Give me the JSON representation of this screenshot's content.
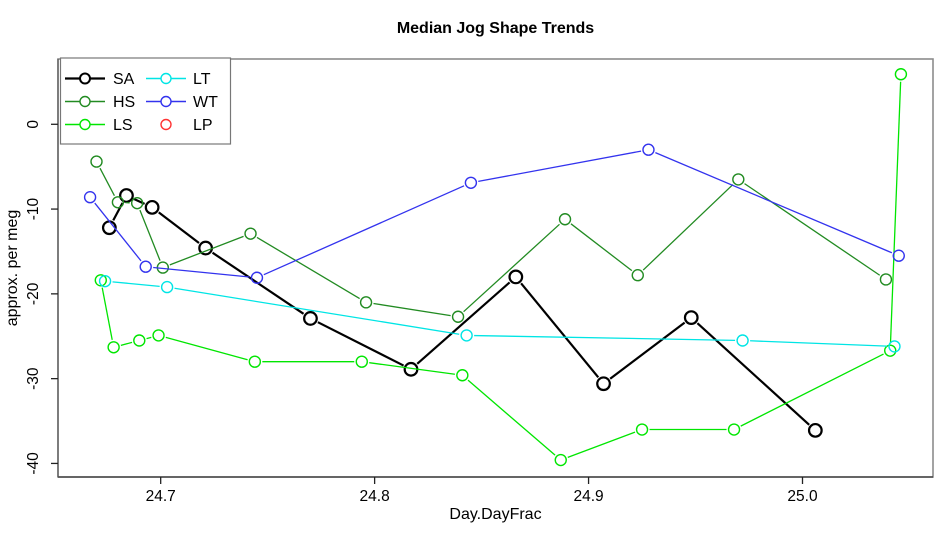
{
  "chart_data": {
    "type": "line",
    "title": "Median Jog Shape Trends",
    "xlabel": "Day.DayFrac",
    "ylabel": "approx. per meg",
    "xlim": [
      24.652,
      25.061
    ],
    "ylim": [
      -41.6,
      7.7
    ],
    "xticks": [
      "24.7",
      "24.8",
      "24.9",
      "25.0"
    ],
    "xtick_values": [
      24.7,
      24.8,
      24.9,
      25.0
    ],
    "yticks": [
      "0",
      "-10",
      "-20",
      "-30",
      "-40"
    ],
    "ytick_values": [
      0,
      -10,
      -20,
      -30,
      -40
    ],
    "grid": false,
    "legend_position": "top-left",
    "legend_columns": [
      [
        "SA",
        "HS",
        "LS"
      ],
      [
        "LT",
        "WT",
        "LP"
      ]
    ],
    "series": [
      {
        "name": "SA",
        "color": "#000000",
        "has_line": true,
        "line_width": 2.2,
        "marker_radius": 6.3,
        "marker_stroke": 2.2,
        "points": [
          [
            24.676,
            -12.2
          ],
          [
            24.684,
            -8.4
          ],
          [
            24.696,
            -9.8
          ],
          [
            24.721,
            -14.6
          ],
          [
            24.77,
            -22.9
          ],
          [
            24.817,
            -28.9
          ],
          [
            24.866,
            -18.0
          ],
          [
            24.907,
            -30.6
          ],
          [
            24.948,
            -22.8
          ],
          [
            25.006,
            -36.1
          ]
        ]
      },
      {
        "name": "HS",
        "color": "#228B22",
        "has_line": true,
        "line_width": 1.3,
        "marker_radius": 5.5,
        "marker_stroke": 1.4,
        "points": [
          [
            24.67,
            -4.4
          ],
          [
            24.68,
            -9.2
          ],
          [
            24.689,
            -9.3
          ],
          [
            24.701,
            -16.9
          ],
          [
            24.742,
            -12.9
          ],
          [
            24.796,
            -21.0
          ],
          [
            24.839,
            -22.7
          ],
          [
            24.889,
            -11.2
          ],
          [
            24.923,
            -17.8
          ],
          [
            24.97,
            -6.5
          ],
          [
            25.039,
            -18.3
          ]
        ]
      },
      {
        "name": "LS",
        "color": "#00E600",
        "has_line": true,
        "line_width": 1.3,
        "marker_radius": 5.5,
        "marker_stroke": 1.4,
        "points": [
          [
            24.672,
            -18.4
          ],
          [
            24.678,
            -26.3
          ],
          [
            24.69,
            -25.5
          ],
          [
            24.699,
            -24.9
          ],
          [
            24.744,
            -28.0
          ],
          [
            24.794,
            -28.0
          ],
          [
            24.841,
            -29.6
          ],
          [
            24.887,
            -39.6
          ],
          [
            24.925,
            -36.0
          ],
          [
            24.968,
            -36.0
          ],
          [
            25.041,
            -26.7
          ],
          [
            25.046,
            5.9
          ]
        ]
      },
      {
        "name": "LT",
        "color": "#00E5E5",
        "has_line": true,
        "line_width": 1.3,
        "marker_radius": 5.5,
        "marker_stroke": 1.4,
        "points": [
          [
            24.674,
            -18.5
          ],
          [
            24.703,
            -19.2
          ],
          [
            24.843,
            -24.9
          ],
          [
            24.972,
            -25.5
          ],
          [
            25.043,
            -26.2
          ]
        ]
      },
      {
        "name": "WT",
        "color": "#3333EE",
        "has_line": true,
        "line_width": 1.3,
        "marker_radius": 5.5,
        "marker_stroke": 1.4,
        "points": [
          [
            24.667,
            -8.6
          ],
          [
            24.693,
            -16.8
          ],
          [
            24.745,
            -18.1
          ],
          [
            24.845,
            -6.9
          ],
          [
            24.928,
            -3.0
          ],
          [
            25.045,
            -15.5
          ]
        ]
      },
      {
        "name": "LP",
        "color": "#FF3333",
        "has_line": false,
        "line_width": 1.3,
        "marker_radius": 5.5,
        "marker_stroke": 1.4,
        "points": []
      }
    ]
  }
}
